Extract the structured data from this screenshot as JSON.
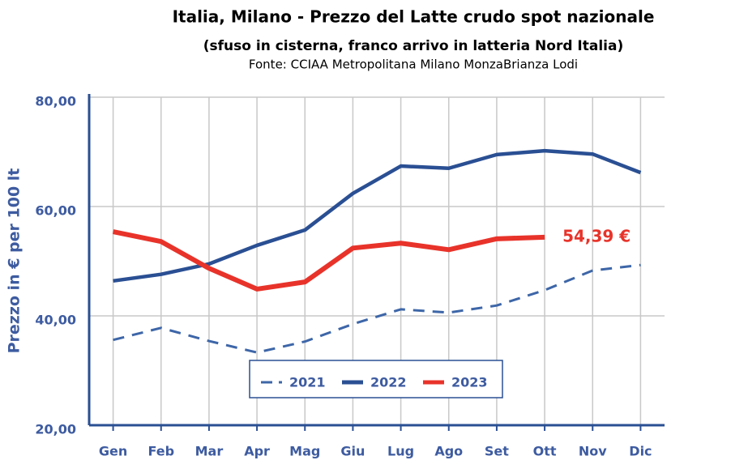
{
  "chart_data": {
    "type": "line",
    "title": "Italia, Milano - Prezzo del Latte crudo spot nazionale",
    "subtitle": "(sfuso in cisterna, franco arrivo in latteria Nord Italia)",
    "source": "Fonte: CCIAA Metropolitana Milano MonzaBrianza Lodi",
    "y_label": "Prezzo in € per 100 lt",
    "annotation": "54,39 €",
    "categories": [
      "Gen",
      "Feb",
      "Mar",
      "Apr",
      "Mag",
      "Giu",
      "Lug",
      "Ago",
      "Set",
      "Ott",
      "Nov",
      "Dic"
    ],
    "series": [
      {
        "name": "2021",
        "color": "#3d66a8",
        "dashed": true,
        "values": [
          35.6,
          37.8,
          35.4,
          33.3,
          35.3,
          38.5,
          41.2,
          40.6,
          41.9,
          44.7,
          48.3,
          49.3
        ]
      },
      {
        "name": "2022",
        "color": "#2a4f93",
        "dashed": false,
        "values": [
          46.4,
          47.6,
          49.5,
          52.9,
          55.7,
          62.4,
          67.4,
          67.0,
          69.5,
          70.2,
          69.6,
          66.2
        ]
      },
      {
        "name": "2023",
        "color": "#e8332a",
        "dashed": false,
        "values": [
          55.4,
          53.6,
          48.7,
          44.9,
          46.2,
          52.4,
          53.3,
          52.1,
          54.1,
          54.39,
          null,
          null
        ]
      }
    ],
    "ylim": [
      20,
      80
    ],
    "yticks": [
      {
        "value": 20,
        "label": "20,00"
      },
      {
        "value": 40,
        "label": "40,00"
      },
      {
        "value": 60,
        "label": "60,00"
      },
      {
        "value": 80,
        "label": "80,00"
      }
    ],
    "grid": true,
    "legend": "bottom"
  }
}
